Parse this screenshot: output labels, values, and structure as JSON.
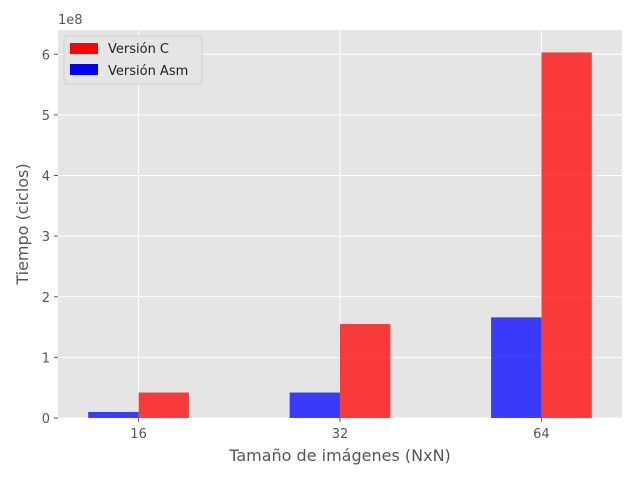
{
  "chart_data": {
    "type": "bar",
    "categories": [
      "16",
      "32",
      "64"
    ],
    "series": [
      {
        "name": "Versión Asm",
        "values": [
          10000000,
          42000000,
          166000000
        ],
        "color": "#0000ff"
      },
      {
        "name": "Versión C",
        "values": [
          42000000,
          155000000,
          603000000
        ],
        "color": "#ff0000"
      }
    ],
    "title": "",
    "xlabel": "Tamaño de imágenes (NxN)",
    "ylabel": "Tiempo (ciclos)",
    "ylim": [
      0,
      640000000
    ],
    "yticks": [
      0,
      1,
      2,
      3,
      4,
      5,
      6
    ],
    "y_offset_label": "1e8",
    "grid": true,
    "legend": {
      "placement": "top-left",
      "entries": [
        {
          "label": "Versión C",
          "color": "#ff0000"
        },
        {
          "label": "Versión Asm",
          "color": "#0000ff"
        }
      ]
    }
  }
}
